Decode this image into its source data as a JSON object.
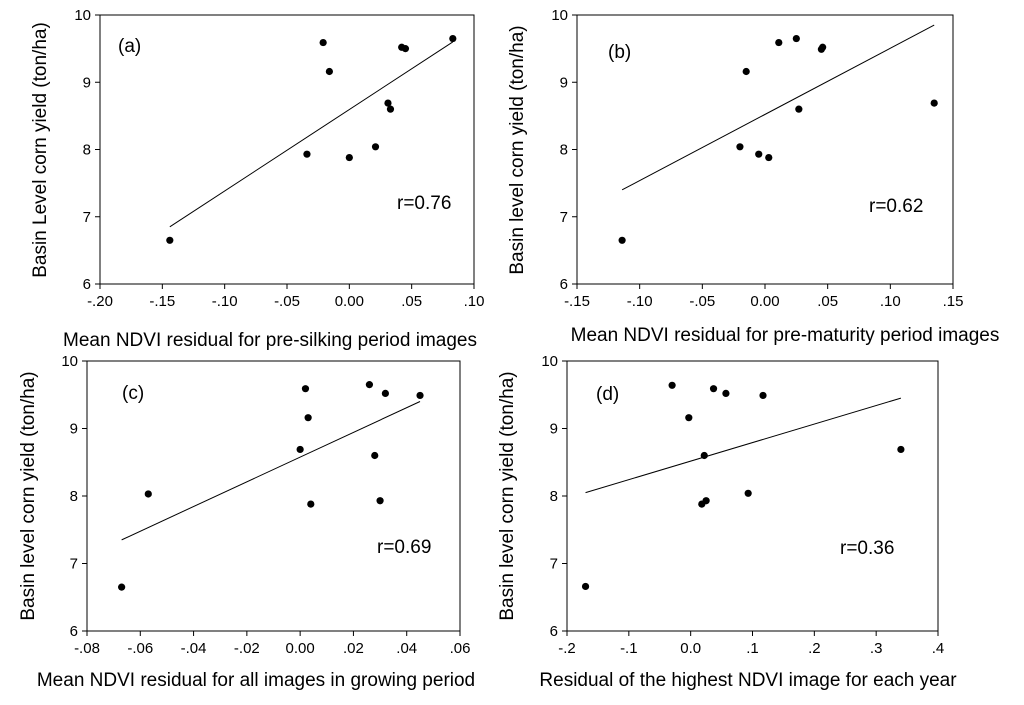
{
  "chart_data": [
    {
      "type": "scatter",
      "panel_label": "(a)",
      "annotation": "r=0.76",
      "xlabel": "Mean NDVI residual for pre-silking period images",
      "ylabel": "Basin Level corn yield (ton/ha)",
      "xlim": [
        -0.2,
        0.1
      ],
      "ylim": [
        6,
        10
      ],
      "xticks": [
        -0.2,
        -0.15,
        -0.1,
        -0.05,
        0.0,
        0.05,
        0.1
      ],
      "xtick_labels": [
        "-.20",
        "-.15",
        "-.10",
        "-.05",
        "0.00",
        ".05",
        ".10"
      ],
      "yticks": [
        6,
        7,
        8,
        9,
        10
      ],
      "ytick_labels": [
        "6",
        "7",
        "8",
        "9",
        "10"
      ],
      "points": [
        {
          "x": -0.144,
          "y": 6.65
        },
        {
          "x": -0.034,
          "y": 7.93
        },
        {
          "x": 0.0,
          "y": 7.88
        },
        {
          "x": -0.021,
          "y": 9.59
        },
        {
          "x": -0.016,
          "y": 9.16
        },
        {
          "x": 0.021,
          "y": 8.04
        },
        {
          "x": 0.031,
          "y": 8.69
        },
        {
          "x": 0.033,
          "y": 8.6
        },
        {
          "x": 0.042,
          "y": 9.52
        },
        {
          "x": 0.045,
          "y": 9.5
        },
        {
          "x": 0.083,
          "y": 9.65
        }
      ],
      "fit_line": [
        {
          "x": -0.144,
          "y": 6.85
        },
        {
          "x": 0.083,
          "y": 9.6
        }
      ]
    },
    {
      "type": "scatter",
      "panel_label": "(b)",
      "annotation": "r=0.62",
      "xlabel": "Mean NDVI residual for pre-maturity period images",
      "ylabel": "Basin level corn yield (ton/ha)",
      "xlim": [
        -0.15,
        0.15
      ],
      "ylim": [
        6,
        10
      ],
      "xticks": [
        -0.15,
        -0.1,
        -0.05,
        0.0,
        0.05,
        0.1,
        0.15
      ],
      "xtick_labels": [
        "-.15",
        "-.10",
        "-.05",
        "0.00",
        ".05",
        ".10",
        ".15"
      ],
      "yticks": [
        6,
        7,
        8,
        9,
        10
      ],
      "ytick_labels": [
        "6",
        "7",
        "8",
        "9",
        "10"
      ],
      "points": [
        {
          "x": -0.114,
          "y": 6.65
        },
        {
          "x": -0.02,
          "y": 8.04
        },
        {
          "x": -0.015,
          "y": 9.16
        },
        {
          "x": -0.005,
          "y": 7.93
        },
        {
          "x": 0.003,
          "y": 7.88
        },
        {
          "x": 0.011,
          "y": 9.59
        },
        {
          "x": 0.025,
          "y": 9.65
        },
        {
          "x": 0.027,
          "y": 8.6
        },
        {
          "x": 0.045,
          "y": 9.49
        },
        {
          "x": 0.046,
          "y": 9.52
        },
        {
          "x": 0.135,
          "y": 8.69
        }
      ],
      "fit_line": [
        {
          "x": -0.114,
          "y": 7.4
        },
        {
          "x": 0.135,
          "y": 9.85
        }
      ]
    },
    {
      "type": "scatter",
      "panel_label": "(c)",
      "annotation": "r=0.69",
      "xlabel": "Mean NDVI residual for all images in growing period",
      "ylabel": "Basin level corn yield (ton/ha)",
      "xlim": [
        -0.08,
        0.06
      ],
      "ylim": [
        6,
        10
      ],
      "xticks": [
        -0.08,
        -0.06,
        -0.04,
        -0.02,
        0.0,
        0.02,
        0.04,
        0.06
      ],
      "xtick_labels": [
        "-.08",
        "-.06",
        "-.04",
        "-.02",
        "0.00",
        ".02",
        ".04",
        ".06"
      ],
      "yticks": [
        6,
        7,
        8,
        9,
        10
      ],
      "ytick_labels": [
        "6",
        "7",
        "8",
        "9",
        "10"
      ],
      "points": [
        {
          "x": -0.067,
          "y": 6.65
        },
        {
          "x": -0.057,
          "y": 8.03
        },
        {
          "x": 0.0,
          "y": 8.69
        },
        {
          "x": 0.002,
          "y": 9.59
        },
        {
          "x": 0.003,
          "y": 9.16
        },
        {
          "x": 0.004,
          "y": 7.88
        },
        {
          "x": 0.026,
          "y": 9.65
        },
        {
          "x": 0.028,
          "y": 8.6
        },
        {
          "x": 0.03,
          "y": 7.93
        },
        {
          "x": 0.032,
          "y": 9.52
        },
        {
          "x": 0.045,
          "y": 9.49
        }
      ],
      "fit_line": [
        {
          "x": -0.067,
          "y": 7.35
        },
        {
          "x": 0.045,
          "y": 9.4
        }
      ]
    },
    {
      "type": "scatter",
      "panel_label": "(d)",
      "annotation": "r=0.36",
      "xlabel": "Residual of the highest NDVI image for each year",
      "ylabel": "Basin level corn yield (ton/ha)",
      "xlim": [
        -0.2,
        0.4
      ],
      "ylim": [
        6,
        10
      ],
      "xticks": [
        -0.2,
        -0.1,
        0.0,
        0.1,
        0.2,
        0.3,
        0.4
      ],
      "xtick_labels": [
        "-.2",
        "-.1",
        "0.0",
        ".1",
        ".2",
        ".3",
        ".4"
      ],
      "yticks": [
        6,
        7,
        8,
        9,
        10
      ],
      "ytick_labels": [
        "6",
        "7",
        "8",
        "9",
        "10"
      ],
      "points": [
        {
          "x": -0.17,
          "y": 6.66
        },
        {
          "x": -0.03,
          "y": 9.64
        },
        {
          "x": -0.003,
          "y": 9.16
        },
        {
          "x": 0.018,
          "y": 7.88
        },
        {
          "x": 0.022,
          "y": 8.6
        },
        {
          "x": 0.025,
          "y": 7.93
        },
        {
          "x": 0.037,
          "y": 9.59
        },
        {
          "x": 0.057,
          "y": 9.52
        },
        {
          "x": 0.093,
          "y": 8.04
        },
        {
          "x": 0.117,
          "y": 9.49
        },
        {
          "x": 0.34,
          "y": 8.69
        }
      ],
      "fit_line": [
        {
          "x": -0.17,
          "y": 8.05
        },
        {
          "x": 0.34,
          "y": 9.45
        }
      ]
    }
  ]
}
